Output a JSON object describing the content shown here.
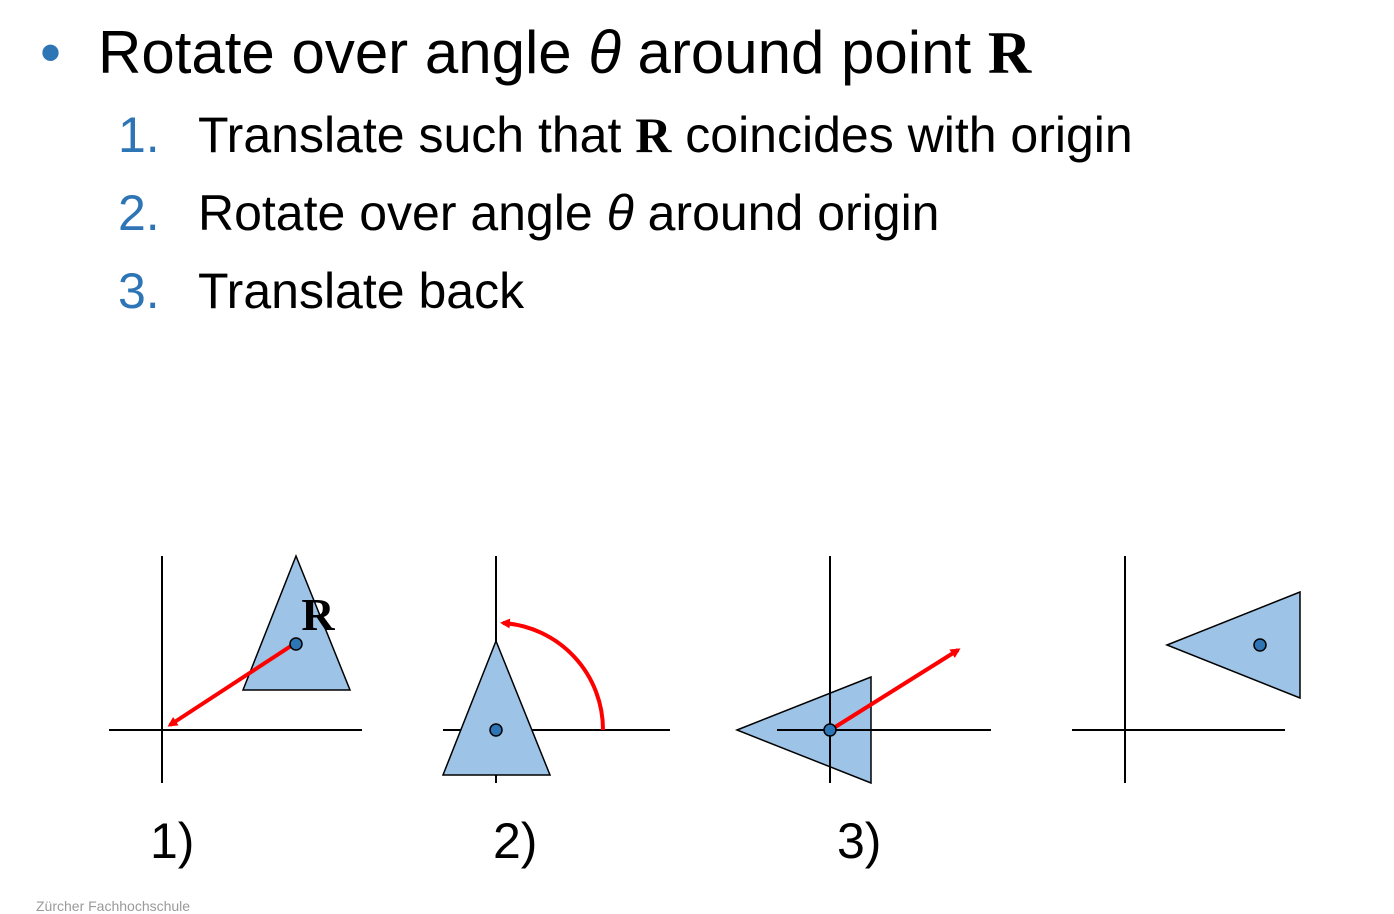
{
  "heading": {
    "bullet": "•",
    "pre": "Rotate over angle ",
    "theta": "θ",
    "mid": " around point ",
    "point": "R"
  },
  "steps": [
    {
      "num": "1.",
      "pre": "Translate such that ",
      "bold": "R",
      "post": " coincides with origin"
    },
    {
      "num": "2.",
      "pre": "Rotate over angle ",
      "theta": "θ",
      "post": " around origin"
    },
    {
      "num": "3.",
      "pre": "Translate back"
    }
  ],
  "diagram": {
    "point_label": "R",
    "panel_labels": [
      "1)",
      "2)",
      "3)"
    ]
  },
  "footer": "Zürcher Fachhochschule",
  "colors": {
    "accent_blue": "#2e75b6",
    "shape_fill": "#9dc3e6",
    "arrow_red": "#ff0000"
  }
}
